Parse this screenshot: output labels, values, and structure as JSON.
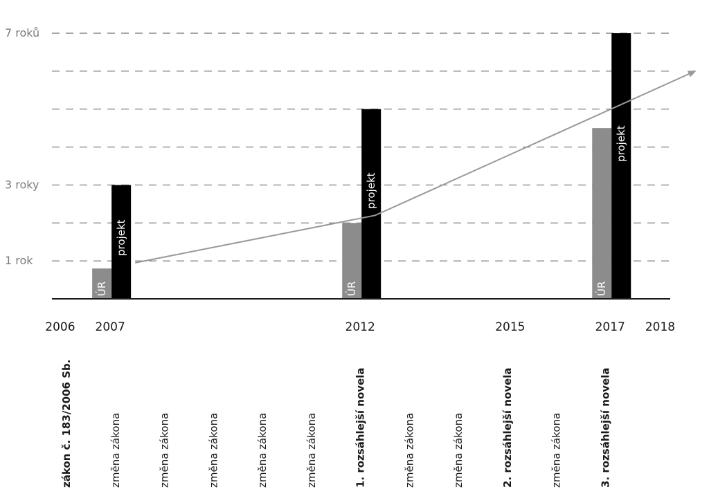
{
  "chart_data": {
    "type": "bar",
    "title": "",
    "xlabel": "",
    "ylabel": "",
    "y_unit": "roky",
    "ylim": [
      0,
      7.3
    ],
    "grid": true,
    "grid_style": "dashed",
    "y_gridlines": [
      1,
      2,
      3,
      4,
      5,
      6,
      7
    ],
    "y_tick_labels": [
      {
        "value": 7,
        "label": "7 roků"
      },
      {
        "value": 3,
        "label": "3 roky"
      },
      {
        "value": 1,
        "label": "1 rok"
      }
    ],
    "x_tick_labels": [
      {
        "value": 2006,
        "label": "2006"
      },
      {
        "value": 2007,
        "label": "2007"
      },
      {
        "value": 2012,
        "label": "2012"
      },
      {
        "value": 2015,
        "label": "2015"
      },
      {
        "value": 2017,
        "label": "2017"
      },
      {
        "value": 2018,
        "label": "2018"
      }
    ],
    "x_range": [
      2005.35,
      2018.7
    ],
    "categories": [
      "2007",
      "2012",
      "2017"
    ],
    "bar_years": [
      2007,
      2012,
      2017
    ],
    "series": [
      {
        "name": "ÚR",
        "color": "#8c8c8c",
        "values": [
          0.8,
          2.0,
          4.5
        ]
      },
      {
        "name": "projekt",
        "color": "#000000",
        "values": [
          3.0,
          5.0,
          7.0
        ]
      }
    ],
    "bar_label_colors": {
      "ÚR": "#ffffff",
      "projekt": "#ffffff"
    },
    "trend_arrow": {
      "color": "#999999",
      "points": [
        {
          "x": 2007.5,
          "y": 0.95
        },
        {
          "x": 2012.3,
          "y": 2.2
        },
        {
          "x": 2018.7,
          "y": 6.0
        }
      ]
    },
    "events": [
      {
        "label": "zákon č. 183/2006 Sb.",
        "major": true
      },
      {
        "label": "změna zákona",
        "major": false
      },
      {
        "label": "změna zákona",
        "major": false
      },
      {
        "label": "změna zákona",
        "major": false
      },
      {
        "label": "změna zákona",
        "major": false
      },
      {
        "label": "změna zákona",
        "major": false
      },
      {
        "label": "1. rozsáhlejší novela",
        "major": true
      },
      {
        "label": "změna zákona",
        "major": false
      },
      {
        "label": "změna zákona",
        "major": false
      },
      {
        "label": "2. rozsáhlejší novela",
        "major": true
      },
      {
        "label": "změna zákona",
        "major": false
      },
      {
        "label": "3. rozsáhlejší novela",
        "major": true
      }
    ]
  }
}
